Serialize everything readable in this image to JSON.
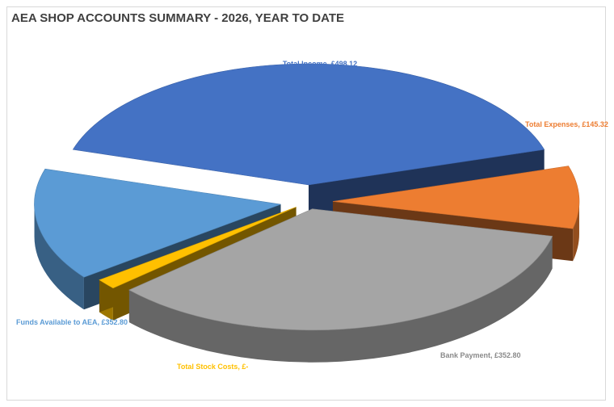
{
  "chart_data": {
    "type": "pie",
    "title": "AEA SHOP ACCOUNTS SUMMARY - 2026, YEAR TO DATE",
    "slices": [
      {
        "label": "Total Income, £498.12",
        "name": "Total Income",
        "value": 498.12,
        "color": "#4472c4"
      },
      {
        "label": "Total Expenses, £145.32",
        "name": "Total Expenses",
        "value": 145.32,
        "color": "#ed7d31"
      },
      {
        "label": "Bank Payment, £352.80",
        "name": "Bank Payment",
        "value": 352.8,
        "color": "#a5a5a5"
      },
      {
        "label": "Total Stock Costs, £-",
        "name": "Total Stock Costs",
        "value": 0,
        "color": "#ffc000"
      },
      {
        "label": "Funds Available to AEA, £352.80",
        "name": "Funds Available to AEA",
        "value": 352.8,
        "color": "#5b9bd5"
      }
    ],
    "three_d": true,
    "exploded": true,
    "legend": "none"
  }
}
